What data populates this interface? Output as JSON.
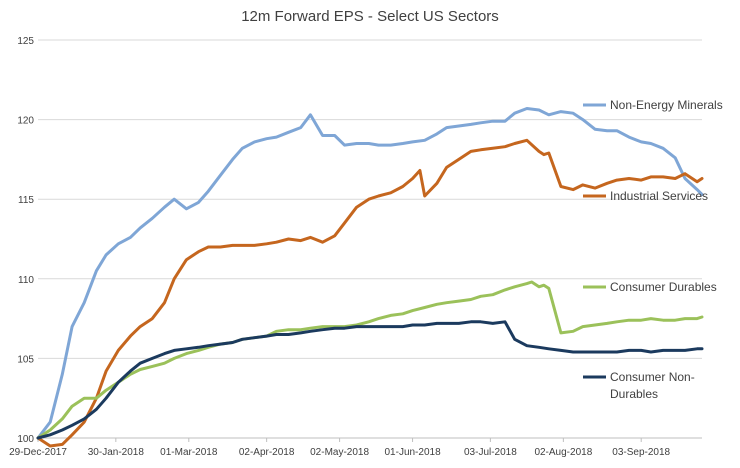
{
  "chart_data": {
    "type": "line",
    "title": "12m Forward EPS - Select US Sectors",
    "xlabel": "",
    "ylabel": "",
    "ylim": [
      100,
      125
    ],
    "yticks": [
      100,
      105,
      110,
      115,
      120,
      125
    ],
    "x_start": "2017-12-29",
    "x_end": "2018-09-28",
    "x_ticks": [
      "29-Dec-2017",
      "30-Jan-2018",
      "01-Mar-2018",
      "02-Apr-2018",
      "02-May-2018",
      "01-Jun-2018",
      "03-Jul-2018",
      "02-Aug-2018",
      "03-Sep-2018"
    ],
    "grid": true,
    "legend": "labels at line ends on the right",
    "series": [
      {
        "name": "Non-Energy Minerals",
        "color": "#7FA6D6",
        "x": [
          "2017-12-29",
          "2018-01-03",
          "2018-01-08",
          "2018-01-12",
          "2018-01-17",
          "2018-01-22",
          "2018-01-26",
          "2018-01-31",
          "2018-02-05",
          "2018-02-09",
          "2018-02-14",
          "2018-02-19",
          "2018-02-23",
          "2018-02-28",
          "2018-03-05",
          "2018-03-09",
          "2018-03-14",
          "2018-03-19",
          "2018-03-23",
          "2018-03-28",
          "2018-04-02",
          "2018-04-06",
          "2018-04-11",
          "2018-04-16",
          "2018-04-20",
          "2018-04-25",
          "2018-04-30",
          "2018-05-04",
          "2018-05-09",
          "2018-05-14",
          "2018-05-18",
          "2018-05-23",
          "2018-05-28",
          "2018-06-01",
          "2018-06-06",
          "2018-06-11",
          "2018-06-15",
          "2018-06-20",
          "2018-06-25",
          "2018-06-29",
          "2018-07-04",
          "2018-07-09",
          "2018-07-13",
          "2018-07-18",
          "2018-07-23",
          "2018-07-27",
          "2018-08-01",
          "2018-08-06",
          "2018-08-10",
          "2018-08-15",
          "2018-08-20",
          "2018-08-24",
          "2018-08-29",
          "2018-09-03",
          "2018-09-07",
          "2018-09-12",
          "2018-09-17",
          "2018-09-21",
          "2018-09-26",
          "2018-09-28"
        ],
        "values": [
          100.0,
          101.0,
          104.0,
          107.0,
          108.5,
          110.5,
          111.5,
          112.2,
          112.6,
          113.2,
          113.8,
          114.5,
          115.0,
          114.4,
          114.8,
          115.5,
          116.5,
          117.5,
          118.2,
          118.6,
          118.8,
          118.9,
          119.2,
          119.5,
          120.3,
          119.0,
          119.0,
          118.4,
          118.5,
          118.5,
          118.4,
          118.4,
          118.5,
          118.6,
          118.7,
          119.1,
          119.5,
          119.6,
          119.7,
          119.8,
          119.9,
          119.9,
          120.4,
          120.7,
          120.6,
          120.3,
          120.5,
          120.4,
          120.0,
          119.4,
          119.3,
          119.3,
          118.9,
          118.6,
          118.5,
          118.2,
          117.6,
          116.3,
          115.6,
          115.3
        ]
      },
      {
        "name": "Industrial Services",
        "color": "#C5661E",
        "x": [
          "2017-12-29",
          "2018-01-03",
          "2018-01-08",
          "2018-01-12",
          "2018-01-17",
          "2018-01-22",
          "2018-01-26",
          "2018-01-31",
          "2018-02-05",
          "2018-02-09",
          "2018-02-14",
          "2018-02-19",
          "2018-02-23",
          "2018-02-28",
          "2018-03-05",
          "2018-03-09",
          "2018-03-14",
          "2018-03-19",
          "2018-03-23",
          "2018-03-28",
          "2018-04-02",
          "2018-04-06",
          "2018-04-11",
          "2018-04-16",
          "2018-04-20",
          "2018-04-25",
          "2018-04-30",
          "2018-05-04",
          "2018-05-09",
          "2018-05-14",
          "2018-05-18",
          "2018-05-23",
          "2018-05-28",
          "2018-06-01",
          "2018-06-04",
          "2018-06-06",
          "2018-06-11",
          "2018-06-15",
          "2018-06-20",
          "2018-06-25",
          "2018-06-29",
          "2018-07-04",
          "2018-07-09",
          "2018-07-13",
          "2018-07-18",
          "2018-07-23",
          "2018-07-25",
          "2018-07-27",
          "2018-08-01",
          "2018-08-06",
          "2018-08-10",
          "2018-08-15",
          "2018-08-20",
          "2018-08-24",
          "2018-08-29",
          "2018-09-03",
          "2018-09-07",
          "2018-09-12",
          "2018-09-17",
          "2018-09-21",
          "2018-09-26",
          "2018-09-28"
        ],
        "values": [
          100.0,
          99.5,
          99.6,
          100.2,
          101.0,
          102.5,
          104.2,
          105.5,
          106.4,
          107.0,
          107.5,
          108.5,
          110.0,
          111.2,
          111.7,
          112.0,
          112.0,
          112.1,
          112.1,
          112.1,
          112.2,
          112.3,
          112.5,
          112.4,
          112.6,
          112.3,
          112.7,
          113.5,
          114.5,
          115.0,
          115.2,
          115.4,
          115.8,
          116.3,
          116.8,
          115.2,
          116.0,
          117.0,
          117.5,
          118.0,
          118.1,
          118.2,
          118.3,
          118.5,
          118.7,
          118.0,
          117.8,
          117.9,
          115.8,
          115.6,
          115.9,
          115.7,
          116.0,
          116.2,
          116.3,
          116.2,
          116.4,
          116.4,
          116.3,
          116.6,
          116.1,
          116.3
        ]
      },
      {
        "name": "Consumer Durables",
        "color": "#9BC15A",
        "x": [
          "2017-12-29",
          "2018-01-03",
          "2018-01-08",
          "2018-01-12",
          "2018-01-17",
          "2018-01-22",
          "2018-01-26",
          "2018-01-31",
          "2018-02-05",
          "2018-02-09",
          "2018-02-14",
          "2018-02-19",
          "2018-02-23",
          "2018-02-28",
          "2018-03-05",
          "2018-03-09",
          "2018-03-14",
          "2018-03-19",
          "2018-03-23",
          "2018-03-28",
          "2018-04-02",
          "2018-04-06",
          "2018-04-11",
          "2018-04-16",
          "2018-04-20",
          "2018-04-25",
          "2018-04-30",
          "2018-05-04",
          "2018-05-09",
          "2018-05-14",
          "2018-05-18",
          "2018-05-23",
          "2018-05-28",
          "2018-06-01",
          "2018-06-06",
          "2018-06-11",
          "2018-06-15",
          "2018-06-20",
          "2018-06-25",
          "2018-06-29",
          "2018-07-04",
          "2018-07-09",
          "2018-07-13",
          "2018-07-18",
          "2018-07-20",
          "2018-07-23",
          "2018-07-25",
          "2018-07-27",
          "2018-08-01",
          "2018-08-06",
          "2018-08-10",
          "2018-08-15",
          "2018-08-20",
          "2018-08-24",
          "2018-08-29",
          "2018-09-03",
          "2018-09-07",
          "2018-09-12",
          "2018-09-17",
          "2018-09-21",
          "2018-09-26",
          "2018-09-28"
        ],
        "values": [
          100.0,
          100.5,
          101.2,
          102.0,
          102.5,
          102.5,
          103.0,
          103.5,
          104.0,
          104.3,
          104.5,
          104.7,
          105.0,
          105.3,
          105.5,
          105.7,
          105.9,
          106.0,
          106.2,
          106.3,
          106.4,
          106.7,
          106.8,
          106.8,
          106.9,
          107.0,
          107.0,
          107.0,
          107.1,
          107.3,
          107.5,
          107.7,
          107.8,
          108.0,
          108.2,
          108.4,
          108.5,
          108.6,
          108.7,
          108.9,
          109.0,
          109.3,
          109.5,
          109.7,
          109.8,
          109.5,
          109.6,
          109.4,
          106.6,
          106.7,
          107.0,
          107.1,
          107.2,
          107.3,
          107.4,
          107.4,
          107.5,
          107.4,
          107.4,
          107.5,
          107.5,
          107.6
        ]
      },
      {
        "name": "Consumer Non-Durables",
        "color": "#1B3A5E",
        "x": [
          "2017-12-29",
          "2018-01-03",
          "2018-01-08",
          "2018-01-12",
          "2018-01-17",
          "2018-01-22",
          "2018-01-26",
          "2018-01-31",
          "2018-02-05",
          "2018-02-09",
          "2018-02-14",
          "2018-02-19",
          "2018-02-23",
          "2018-02-28",
          "2018-03-05",
          "2018-03-09",
          "2018-03-14",
          "2018-03-19",
          "2018-03-23",
          "2018-03-28",
          "2018-04-02",
          "2018-04-06",
          "2018-04-11",
          "2018-04-16",
          "2018-04-20",
          "2018-04-25",
          "2018-04-30",
          "2018-05-04",
          "2018-05-09",
          "2018-05-14",
          "2018-05-18",
          "2018-05-23",
          "2018-05-28",
          "2018-06-01",
          "2018-06-06",
          "2018-06-11",
          "2018-06-15",
          "2018-06-20",
          "2018-06-25",
          "2018-06-29",
          "2018-07-04",
          "2018-07-09",
          "2018-07-13",
          "2018-07-18",
          "2018-07-23",
          "2018-07-27",
          "2018-08-01",
          "2018-08-06",
          "2018-08-10",
          "2018-08-15",
          "2018-08-20",
          "2018-08-24",
          "2018-08-29",
          "2018-09-03",
          "2018-09-07",
          "2018-09-12",
          "2018-09-17",
          "2018-09-21",
          "2018-09-26",
          "2018-09-28"
        ],
        "values": [
          100.0,
          100.2,
          100.5,
          100.8,
          101.2,
          101.8,
          102.5,
          103.5,
          104.2,
          104.7,
          105.0,
          105.3,
          105.5,
          105.6,
          105.7,
          105.8,
          105.9,
          106.0,
          106.2,
          106.3,
          106.4,
          106.5,
          106.5,
          106.6,
          106.7,
          106.8,
          106.9,
          106.9,
          107.0,
          107.0,
          107.0,
          107.0,
          107.0,
          107.1,
          107.1,
          107.2,
          107.2,
          107.2,
          107.3,
          107.3,
          107.2,
          107.3,
          106.2,
          105.8,
          105.7,
          105.6,
          105.5,
          105.4,
          105.4,
          105.4,
          105.4,
          105.4,
          105.5,
          105.5,
          105.4,
          105.5,
          105.5,
          105.5,
          105.6,
          105.6
        ]
      }
    ]
  }
}
